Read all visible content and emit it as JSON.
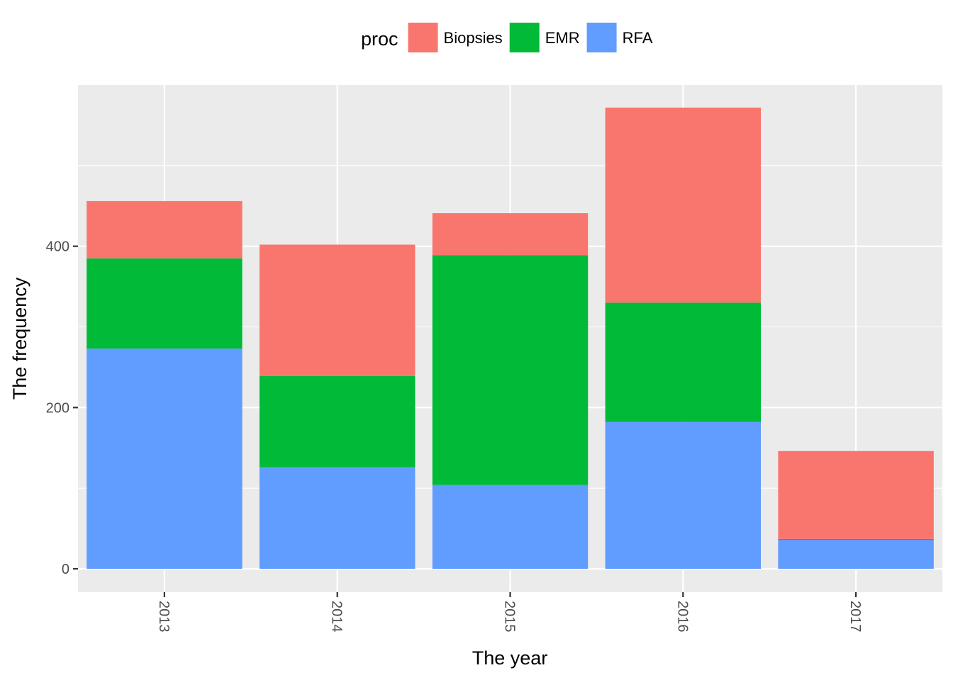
{
  "chart_data": {
    "type": "bar",
    "stacked": true,
    "xlabel": "The year",
    "ylabel": "The frequency",
    "categories": [
      "2013",
      "2014",
      "2015",
      "2016",
      "2017"
    ],
    "series": [
      {
        "name": "Biopsies",
        "color": "#F8766D",
        "values": [
          71,
          163,
          52,
          242,
          109
        ]
      },
      {
        "name": "EMR",
        "color": "#00BA38",
        "values": [
          112,
          113,
          285,
          148,
          1
        ]
      },
      {
        "name": "RFA",
        "color": "#619CFF",
        "values": [
          273,
          126,
          104,
          182,
          36
        ]
      }
    ],
    "stack_order_bottom_to_top": [
      "RFA",
      "EMR",
      "Biopsies"
    ],
    "ylim": [
      -29,
      600
    ],
    "yticks": [
      0,
      200,
      400
    ],
    "ytick_labels": [
      "0",
      "200",
      "400"
    ],
    "grid": true,
    "legend": {
      "title": "proc",
      "position": "top"
    },
    "panel_background": "#EBEBEB",
    "grid_color": "#FFFFFF"
  }
}
